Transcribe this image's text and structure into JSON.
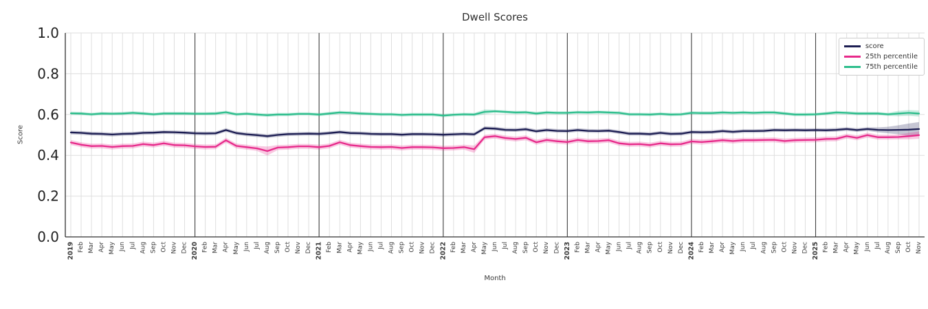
{
  "chart_data": {
    "type": "line",
    "title": "Dwell Scores",
    "xlabel": "Month",
    "ylabel": "Score",
    "ylim": [
      0.0,
      1.0
    ],
    "yticks": [
      0.0,
      0.2,
      0.4,
      0.6,
      0.8,
      1.0
    ],
    "grid": true,
    "legend_position": "upper right",
    "x_labels": [
      "2019",
      "Feb",
      "Mar",
      "Apr",
      "May",
      "Jun",
      "Jul",
      "Aug",
      "Sep",
      "Oct",
      "Nov",
      "Dec",
      "2020",
      "Feb",
      "Mar",
      "Apr",
      "May",
      "Jun",
      "Jul",
      "Aug",
      "Sep",
      "Oct",
      "Nov",
      "Dec",
      "2021",
      "Feb",
      "Mar",
      "Apr",
      "May",
      "Jun",
      "Jul",
      "Aug",
      "Sep",
      "Oct",
      "Nov",
      "Dec",
      "2022",
      "Feb",
      "Mar",
      "Apr",
      "May",
      "Jun",
      "Jul",
      "Aug",
      "Sep",
      "Oct",
      "Nov",
      "Dec",
      "2023",
      "Feb",
      "Mar",
      "Apr",
      "May",
      "Jun",
      "Jul",
      "Aug",
      "Sep",
      "Oct",
      "Nov",
      "Dec",
      "2024",
      "Feb",
      "Mar",
      "Apr",
      "May",
      "Jun",
      "Jul",
      "Aug",
      "Sep",
      "Oct",
      "Nov",
      "Dec",
      "2025",
      "Feb",
      "Mar",
      "Apr",
      "May",
      "Jun",
      "Jul",
      "Aug",
      "Sep",
      "Oct",
      "Nov"
    ],
    "year_tick_indices": [
      0,
      12,
      24,
      36,
      48,
      60,
      72
    ],
    "year_boundary_indices": [
      12,
      24,
      36,
      48,
      60,
      72
    ],
    "series": [
      {
        "name": "score",
        "color": "#1c1d52",
        "band_halfwidth": 0.009,
        "band_overrides": {
          "78": 0.012,
          "79": 0.016,
          "80": 0.022,
          "81": 0.03,
          "82": 0.034
        },
        "values": [
          0.512,
          0.51,
          0.506,
          0.505,
          0.502,
          0.505,
          0.506,
          0.51,
          0.511,
          0.514,
          0.513,
          0.511,
          0.508,
          0.507,
          0.508,
          0.524,
          0.509,
          0.503,
          0.499,
          0.494,
          0.5,
          0.504,
          0.505,
          0.506,
          0.505,
          0.509,
          0.514,
          0.509,
          0.508,
          0.505,
          0.504,
          0.504,
          0.501,
          0.504,
          0.504,
          0.503,
          0.501,
          0.503,
          0.505,
          0.503,
          0.533,
          0.531,
          0.525,
          0.524,
          0.528,
          0.518,
          0.524,
          0.52,
          0.519,
          0.524,
          0.52,
          0.519,
          0.521,
          0.514,
          0.506,
          0.506,
          0.504,
          0.51,
          0.505,
          0.506,
          0.514,
          0.513,
          0.514,
          0.519,
          0.515,
          0.519,
          0.519,
          0.52,
          0.524,
          0.523,
          0.524,
          0.523,
          0.524,
          0.523,
          0.525,
          0.529,
          0.524,
          0.529,
          0.525,
          0.524,
          0.525,
          0.526,
          0.529
        ]
      },
      {
        "name": "25th percentile",
        "color": "#e7298a",
        "band_halfwidth": 0.012,
        "band_overrides": {
          "19": 0.022,
          "39": 0.018,
          "81": 0.016,
          "82": 0.018
        },
        "values": [
          0.463,
          0.452,
          0.445,
          0.446,
          0.441,
          0.445,
          0.446,
          0.455,
          0.45,
          0.459,
          0.45,
          0.449,
          0.444,
          0.441,
          0.442,
          0.474,
          0.446,
          0.44,
          0.434,
          0.421,
          0.438,
          0.44,
          0.444,
          0.444,
          0.44,
          0.446,
          0.464,
          0.45,
          0.445,
          0.441,
          0.44,
          0.441,
          0.436,
          0.44,
          0.44,
          0.439,
          0.435,
          0.436,
          0.44,
          0.43,
          0.489,
          0.494,
          0.485,
          0.48,
          0.486,
          0.464,
          0.475,
          0.469,
          0.465,
          0.475,
          0.469,
          0.47,
          0.474,
          0.459,
          0.454,
          0.455,
          0.45,
          0.459,
          0.454,
          0.455,
          0.468,
          0.465,
          0.469,
          0.474,
          0.47,
          0.474,
          0.474,
          0.475,
          0.476,
          0.47,
          0.474,
          0.475,
          0.476,
          0.48,
          0.481,
          0.494,
          0.486,
          0.499,
          0.489,
          0.489,
          0.49,
          0.494,
          0.499
        ]
      },
      {
        "name": "75th percentile",
        "color": "#2bbd8b",
        "band_halfwidth": 0.008,
        "band_overrides": {
          "40": 0.012,
          "80": 0.013,
          "81": 0.014,
          "82": 0.015
        },
        "values": [
          0.606,
          0.605,
          0.601,
          0.605,
          0.604,
          0.605,
          0.608,
          0.605,
          0.601,
          0.605,
          0.605,
          0.605,
          0.604,
          0.604,
          0.605,
          0.611,
          0.601,
          0.604,
          0.6,
          0.597,
          0.6,
          0.6,
          0.603,
          0.603,
          0.6,
          0.605,
          0.61,
          0.608,
          0.605,
          0.603,
          0.601,
          0.601,
          0.598,
          0.6,
          0.6,
          0.6,
          0.595,
          0.599,
          0.601,
          0.6,
          0.613,
          0.616,
          0.613,
          0.61,
          0.611,
          0.605,
          0.61,
          0.608,
          0.608,
          0.611,
          0.61,
          0.612,
          0.61,
          0.608,
          0.601,
          0.601,
          0.6,
          0.603,
          0.6,
          0.601,
          0.608,
          0.607,
          0.607,
          0.61,
          0.608,
          0.61,
          0.608,
          0.61,
          0.61,
          0.605,
          0.6,
          0.6,
          0.601,
          0.605,
          0.61,
          0.608,
          0.605,
          0.605,
          0.605,
          0.601,
          0.605,
          0.608,
          0.605
        ]
      }
    ],
    "style": {
      "grid_color": "#dedede",
      "year_line_color": "#404040",
      "spine_color": "#2e2e2e",
      "tick_label_color": "#1f1f1f",
      "band_opacity": 0.25
    }
  }
}
